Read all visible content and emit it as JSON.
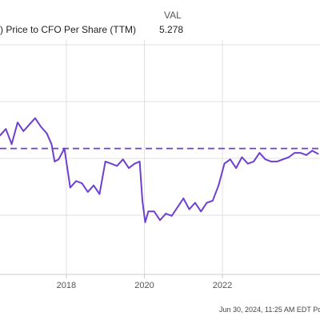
{
  "legend": {
    "header": "VAL",
    "series_label": ") Price to CFO Per Share (TTM)",
    "series_value": "5.278"
  },
  "footer_note": "Jun 30, 2024, 11:25 AM EDT Pow",
  "colors": {
    "series": "#6e3fd1",
    "reference_line": "#6e3fd1",
    "grid": "#e0e0e0",
    "axis": "#cccccc"
  },
  "chart_data": {
    "type": "line",
    "title": "",
    "xlabel": "",
    "ylabel": "",
    "x_tick_labels": [
      "2018",
      "2020",
      "2022"
    ],
    "x_tick_values": [
      2018,
      2020,
      2022
    ],
    "xlim": [
      2016.3,
      2024.5
    ],
    "ylim": [
      2.5,
      7.9
    ],
    "grid": true,
    "reference_line": {
      "style": "dashed",
      "y": 5.4
    },
    "series": [
      {
        "x": [
          2016.3,
          2016.45,
          2016.6,
          2016.75,
          2016.9,
          2017.05,
          2017.2,
          2017.35,
          2017.5,
          2017.62,
          2017.7,
          2017.8,
          2017.95,
          2018.1,
          2018.25,
          2018.4,
          2018.55,
          2018.7,
          2018.85,
          2019.0,
          2019.15,
          2019.3,
          2019.45,
          2019.6,
          2019.75,
          2019.88,
          2019.95,
          2020.02,
          2020.1,
          2020.25,
          2020.4,
          2020.55,
          2020.7,
          2020.85,
          2021.0,
          2021.15,
          2021.3,
          2021.45,
          2021.6,
          2021.75,
          2021.9,
          2022.05,
          2022.2,
          2022.35,
          2022.5,
          2022.65,
          2022.8,
          2022.95,
          2023.1,
          2023.25,
          2023.4,
          2023.55,
          2023.7,
          2023.85,
          2024.0,
          2024.15,
          2024.3,
          2024.45
        ],
        "y": [
          5.7,
          5.85,
          5.5,
          6.0,
          5.8,
          5.95,
          6.1,
          5.9,
          5.75,
          5.5,
          5.1,
          5.15,
          5.4,
          4.5,
          4.65,
          4.6,
          4.4,
          4.55,
          4.35,
          5.1,
          5.05,
          5.0,
          5.15,
          4.95,
          5.05,
          5.1,
          4.2,
          3.7,
          3.95,
          3.95,
          3.75,
          3.9,
          3.85,
          4.05,
          4.25,
          4.0,
          4.15,
          3.95,
          4.15,
          4.2,
          4.55,
          5.05,
          5.15,
          4.95,
          5.2,
          5.05,
          5.1,
          5.3,
          5.15,
          5.1,
          5.1,
          5.15,
          5.2,
          5.3,
          5.3,
          5.25,
          5.35,
          5.278
        ]
      }
    ]
  }
}
